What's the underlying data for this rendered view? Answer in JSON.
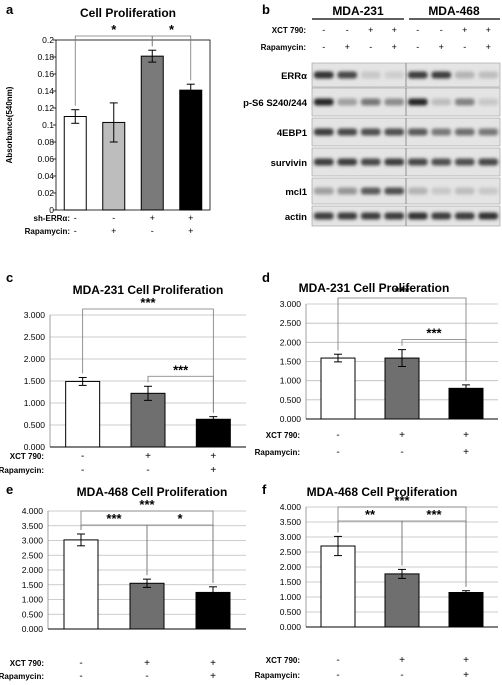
{
  "panel_letters": [
    "a",
    "b",
    "c",
    "d",
    "e",
    "f"
  ],
  "chart_data": [
    {
      "panel": "a",
      "type": "bar",
      "title": "Cell Proliferation",
      "ylabel": "Absorbance(540nm)",
      "ylim": [
        0,
        0.2
      ],
      "yticks": [
        "0",
        "0.02",
        "0.04",
        "0.06",
        "0.08",
        "0.1",
        "0.12",
        "0.14",
        "0.16",
        "0.18",
        "0.2"
      ],
      "values": [
        0.11,
        0.103,
        0.181,
        0.141
      ],
      "errors": [
        0.008,
        0.023,
        0.007,
        0.007
      ],
      "colors": [
        "#ffffff",
        "#bdbdbd",
        "#7a7a7a",
        "#000000"
      ],
      "treatment_rows": [
        {
          "label": "sh-ERRα:",
          "marks": [
            "-",
            "-",
            "+",
            "+"
          ]
        },
        {
          "label": "Rapamycin:",
          "marks": [
            "-",
            "+",
            "-",
            "+"
          ]
        }
      ],
      "significance": [
        {
          "from": 0,
          "to": 2,
          "label": "*"
        },
        {
          "from": 2,
          "to": 3,
          "label": "*"
        }
      ]
    },
    {
      "panel": "c",
      "type": "bar",
      "title": "MDA-231 Cell Proliferation",
      "ylim": [
        0,
        3.0
      ],
      "yticks": [
        "0.000",
        "0.500",
        "1.000",
        "1.500",
        "2.000",
        "2.500",
        "3.000"
      ],
      "values": [
        1.49,
        1.22,
        0.63
      ],
      "errors": [
        0.09,
        0.16,
        0.06
      ],
      "colors": [
        "#ffffff",
        "#6f6f6f",
        "#000000"
      ],
      "treatment_rows": [
        {
          "label": "XCT 790:",
          "marks": [
            "-",
            "+",
            "+"
          ]
        },
        {
          "label": "Rapamycin:",
          "marks": [
            "-",
            "-",
            "+"
          ]
        }
      ],
      "significance": [
        {
          "from": 0,
          "to": 2,
          "label": "***"
        },
        {
          "from": 1,
          "to": 2,
          "label": "***"
        }
      ]
    },
    {
      "panel": "d",
      "type": "bar",
      "title": "MDA-231 Cell Proliferation",
      "ylim": [
        0,
        3.0
      ],
      "yticks": [
        "0.000",
        "0.500",
        "1.000",
        "1.500",
        "2.000",
        "2.500",
        "3.000"
      ],
      "values": [
        1.59,
        1.59,
        0.8
      ],
      "errors": [
        0.1,
        0.22,
        0.09
      ],
      "colors": [
        "#ffffff",
        "#6f6f6f",
        "#000000"
      ],
      "treatment_rows": [
        {
          "label": "XCT 790:",
          "marks": [
            "-",
            "+",
            "+"
          ]
        },
        {
          "label": "Rapamycin:",
          "marks": [
            "-",
            "-",
            "+"
          ]
        }
      ],
      "significance": [
        {
          "from": 0,
          "to": 2,
          "label": "***"
        },
        {
          "from": 1,
          "to": 2,
          "label": "***"
        }
      ]
    },
    {
      "panel": "e",
      "type": "bar",
      "title": "MDA-468 Cell Proliferation",
      "ylim": [
        0,
        4.0
      ],
      "yticks": [
        "0.000",
        "0.500",
        "1.000",
        "1.500",
        "2.000",
        "2.500",
        "3.000",
        "3.500",
        "4.000"
      ],
      "values": [
        3.02,
        1.55,
        1.24
      ],
      "errors": [
        0.2,
        0.14,
        0.19
      ],
      "colors": [
        "#ffffff",
        "#6f6f6f",
        "#000000"
      ],
      "treatment_rows": [
        {
          "label": "XCT 790:",
          "marks": [
            "-",
            "+",
            "+"
          ]
        },
        {
          "label": "Rapamycin:",
          "marks": [
            "-",
            "-",
            "+"
          ]
        }
      ],
      "significance": [
        {
          "from": 0,
          "to": 2,
          "label": "***"
        },
        {
          "from": 0,
          "to": 1,
          "label": "***"
        },
        {
          "from": 1,
          "to": 2,
          "label": "*"
        }
      ]
    },
    {
      "panel": "f",
      "type": "bar",
      "title": "MDA-468 Cell Proliferation",
      "ylim": [
        0,
        4.0
      ],
      "yticks": [
        "0.000",
        "0.500",
        "1.000",
        "1.500",
        "2.000",
        "2.500",
        "3.000",
        "3.500",
        "4.000"
      ],
      "values": [
        2.7,
        1.77,
        1.15
      ],
      "errors": [
        0.32,
        0.15,
        0.06
      ],
      "colors": [
        "#ffffff",
        "#6f6f6f",
        "#000000"
      ],
      "treatment_rows": [
        {
          "label": "XCT 790:",
          "marks": [
            "-",
            "+",
            "+"
          ]
        },
        {
          "label": "Rapamycin:",
          "marks": [
            "-",
            "-",
            "+"
          ]
        }
      ],
      "significance": [
        {
          "from": 0,
          "to": 2,
          "label": "***"
        },
        {
          "from": 0,
          "to": 1,
          "label": "**"
        },
        {
          "from": 1,
          "to": 2,
          "label": "***"
        }
      ]
    }
  ],
  "western_blot": {
    "panel": "b",
    "cell_lines": [
      "MDA-231",
      "MDA-468"
    ],
    "treatment_rows": [
      {
        "label": "XCT 790:",
        "marks": [
          "-",
          "-",
          "+",
          "+",
          "-",
          "-",
          "+",
          "+"
        ]
      },
      {
        "label": "Rapamycin:",
        "marks": [
          "-",
          "+",
          "-",
          "+",
          "-",
          "+",
          "-",
          "+"
        ]
      }
    ],
    "proteins": [
      "ERRα",
      "p-S6 S240/244",
      "4EBP1",
      "survivin",
      "mcl1",
      "actin"
    ],
    "band_intensity": [
      [
        0.9,
        0.8,
        0.15,
        0.12,
        0.85,
        0.85,
        0.25,
        0.2
      ],
      [
        0.95,
        0.35,
        0.55,
        0.45,
        0.95,
        0.2,
        0.5,
        0.15
      ],
      [
        0.85,
        0.8,
        0.75,
        0.75,
        0.7,
        0.55,
        0.6,
        0.55
      ],
      [
        0.85,
        0.85,
        0.8,
        0.85,
        0.8,
        0.75,
        0.75,
        0.8
      ],
      [
        0.35,
        0.4,
        0.7,
        0.75,
        0.25,
        0.15,
        0.2,
        0.15
      ],
      [
        0.85,
        0.85,
        0.85,
        0.85,
        0.9,
        0.85,
        0.85,
        0.9
      ]
    ]
  }
}
